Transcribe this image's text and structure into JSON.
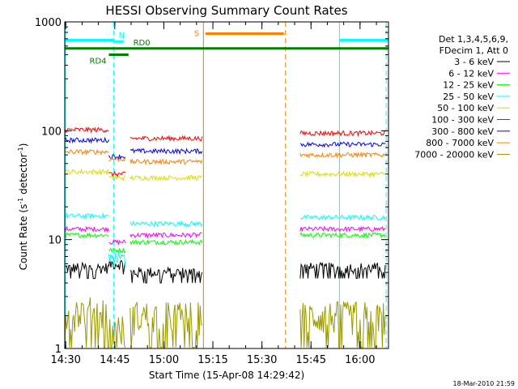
{
  "chart_data": {
    "type": "line",
    "title": "HESSI Observing Summary Count Rates",
    "xlabel": "Start Time (15-Apr-08 14:29:42)",
    "ylabel_main": "Count Rate (s",
    "ylabel_sup1": "-1",
    "ylabel_mid": " detector",
    "ylabel_sup2": "-1",
    "ylabel_end": ")",
    "ylabel": "Count Rate (s-1 detector-1)",
    "y_scale": "log",
    "ylim": [
      1,
      1000
    ],
    "xlim_minutes": [
      0,
      99
    ],
    "x_ticks": [
      {
        "m": 0.3,
        "label": "14:30"
      },
      {
        "m": 15.3,
        "label": "14:45"
      },
      {
        "m": 30.3,
        "label": "15:00"
      },
      {
        "m": 45.3,
        "label": "15:15"
      },
      {
        "m": 60.3,
        "label": "15:30"
      },
      {
        "m": 75.3,
        "label": "15:45"
      },
      {
        "m": 90.3,
        "label": "16:00"
      }
    ],
    "y_ticks": [
      {
        "v": 1,
        "label": "1"
      },
      {
        "v": 10,
        "label": "10"
      },
      {
        "v": 100,
        "label": "100"
      },
      {
        "v": 1000,
        "label": "1000"
      }
    ],
    "legend_header": [
      "Det 1,3,4,5,6,9,",
      "FDecim 1, Att 0"
    ],
    "legend_placement": "right",
    "timestamp": "18-Mar-2010 21:59",
    "series": [
      {
        "name": "3 - 6 keV",
        "color": "#000000",
        "segments": [
          [
            0,
            13.5,
            5.5
          ],
          [
            13.5,
            18.5,
            6.0
          ],
          [
            20,
            42,
            5.0
          ],
          [
            72,
            98,
            5.5
          ]
        ]
      },
      {
        "name": "6 - 12 keV",
        "color": "#ff00ff",
        "segments": [
          [
            0,
            13.5,
            12.5
          ],
          [
            13.5,
            18.5,
            9.5
          ],
          [
            20,
            42,
            11.0
          ],
          [
            72,
            98,
            12.5
          ]
        ]
      },
      {
        "name": "12 - 25 keV",
        "color": "#00ff00",
        "segments": [
          [
            0,
            13.5,
            11.0
          ],
          [
            13.5,
            18.5,
            8.0
          ],
          [
            20,
            42,
            9.5
          ],
          [
            72,
            98,
            11.0
          ]
        ]
      },
      {
        "name": "25 - 50 keV",
        "color": "#00ffff",
        "segments": [
          [
            0,
            13.5,
            16.5
          ],
          [
            13.5,
            18.5,
            7.0
          ],
          [
            20,
            42,
            14.0
          ],
          [
            72,
            98,
            16.0
          ]
        ]
      },
      {
        "name": "50 - 100 keV",
        "color": "#dddd00",
        "segments": [
          [
            0,
            13.5,
            42.0
          ],
          [
            13.5,
            18.5,
            37.0
          ],
          [
            20,
            42,
            37.0
          ],
          [
            72,
            98,
            40.0
          ]
        ]
      },
      {
        "name": "100 - 300 keV",
        "color": "#ff0000",
        "segments": [
          [
            0,
            13.5,
            102.0
          ],
          [
            13.5,
            18.5,
            40.0
          ],
          [
            20,
            42,
            85.0
          ],
          [
            72,
            98,
            95.0
          ]
        ]
      },
      {
        "name": "300 - 800 keV",
        "color": "#0000ff",
        "segments": [
          [
            0,
            13.5,
            82.0
          ],
          [
            13.5,
            18.5,
            58.0
          ],
          [
            20,
            42,
            65.0
          ],
          [
            72,
            98,
            75.0
          ]
        ]
      },
      {
        "name": "800 - 7000 keV",
        "color": "#ff8000",
        "segments": [
          [
            0,
            13.5,
            64.0
          ],
          [
            13.5,
            18.5,
            55.0
          ],
          [
            20,
            42,
            52.0
          ],
          [
            72,
            98,
            60.0
          ]
        ]
      },
      {
        "name": "7000 - 20000 keV",
        "color": "#999900",
        "segments": [
          [
            0,
            13.5,
            2.2
          ],
          [
            13.5,
            18.5,
            1.5
          ],
          [
            20,
            42,
            2.0
          ],
          [
            72,
            98,
            2.0
          ]
        ]
      }
    ],
    "flag_bars": [
      {
        "label": "",
        "color": "#00ffff",
        "start": 0,
        "end": 15,
        "y_level": 680
      },
      {
        "label": "N",
        "color": "#00ffff",
        "start": 15,
        "end": 18,
        "y_level": 660
      },
      {
        "label": "",
        "color": "#00ffff",
        "start": 84,
        "end": 99,
        "y_level": 680
      },
      {
        "label": "S",
        "color": "#ff8000",
        "start": 43,
        "end": 67,
        "y_level": 780
      },
      {
        "label": "RD4",
        "color": "#008000",
        "start": 13.5,
        "end": 19.5,
        "y_level": 500
      },
      {
        "label": "RD0",
        "color": "#008000",
        "start": 0,
        "end": 99,
        "y_level": 570
      }
    ],
    "vertical_markers": [
      {
        "m": 0.2,
        "color": "#00ffff",
        "style": "solid"
      },
      {
        "m": 15,
        "color": "#00ffff",
        "style": "dashed"
      },
      {
        "m": 42.4,
        "color": "#cc8800",
        "style": "solid"
      },
      {
        "m": 67.5,
        "color": "#ff8000",
        "style": "dashed"
      },
      {
        "m": 84,
        "color": "#00ffff",
        "style": "solid"
      },
      {
        "m": 98.3,
        "color": "#00ffff",
        "style": "dashed"
      }
    ]
  }
}
